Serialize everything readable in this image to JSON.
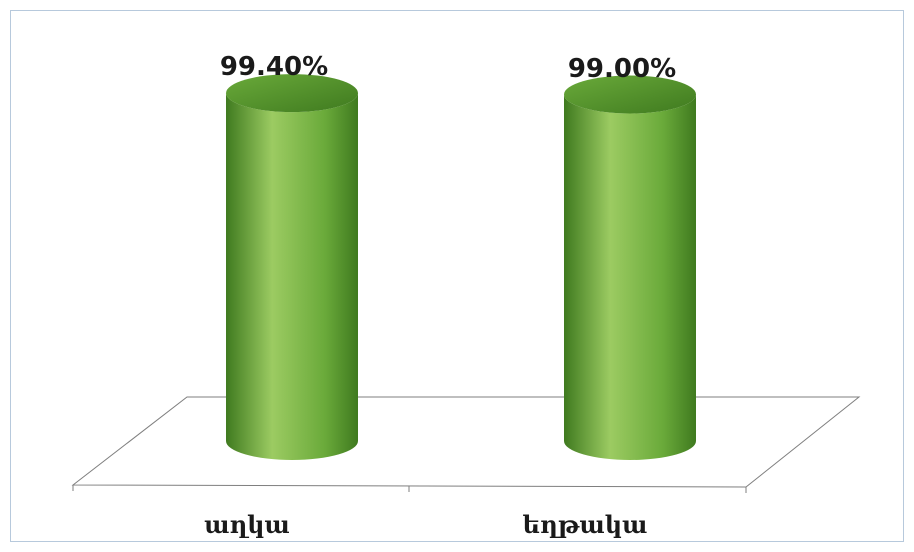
{
  "chart_data": {
    "type": "bar",
    "style": "3d-cylinder",
    "categories": [
      "աղկա",
      "եղթակա"
    ],
    "values": [
      99.4,
      99.0
    ],
    "data_labels": [
      "99.40%",
      "99.00%"
    ],
    "ylim": [
      0,
      100
    ],
    "grid": false,
    "legend": "none",
    "bar_color": "#6aaa3a",
    "bar_highlight": "#9ccb62",
    "bar_shadow": "#3f7a1f",
    "frame_color": "#b7c9dc"
  }
}
